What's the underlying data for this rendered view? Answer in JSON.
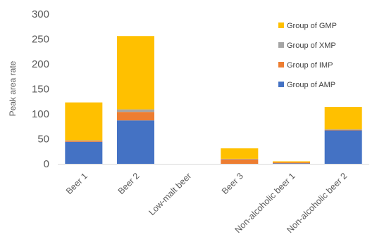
{
  "chart_data": {
    "type": "bar",
    "stacked": true,
    "title": "",
    "xlabel": "",
    "ylabel": "Peak area rate",
    "ylim": [
      0,
      300
    ],
    "yticks": [
      0,
      50,
      100,
      150,
      200,
      250,
      300
    ],
    "grid": false,
    "legend_position": "right",
    "categories": [
      "Beer 1",
      "Beer 2",
      "Low-malt beer",
      "Beer 3",
      "Non-alcoholic beer 1",
      "Non-alcoholic beer 2"
    ],
    "series": [
      {
        "name": "Group of AMP",
        "color": "#4472C4",
        "values": [
          44,
          87,
          0,
          0,
          1,
          67
        ]
      },
      {
        "name": "Group of IMP",
        "color": "#ED7D31",
        "values": [
          2,
          17,
          0,
          9,
          2,
          1
        ]
      },
      {
        "name": "Group of XMP",
        "color": "#A5A5A5",
        "values": [
          1,
          5,
          0,
          1,
          0,
          1
        ]
      },
      {
        "name": "Group of GMP",
        "color": "#FFC000",
        "values": [
          76,
          147,
          0,
          21,
          2,
          45
        ]
      }
    ],
    "legend_order": [
      "Group of GMP",
      "Group of XMP",
      "Group of IMP",
      "Group of AMP"
    ]
  }
}
